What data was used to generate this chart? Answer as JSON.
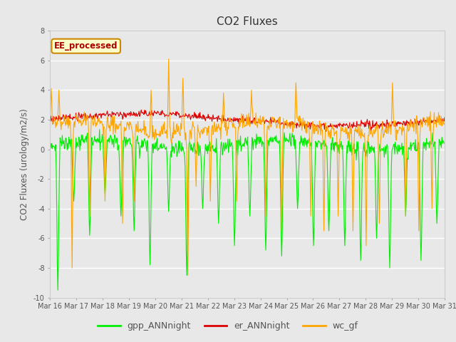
{
  "title": "CO2 Fluxes",
  "ylabel": "CO2 Fluxes (urology/m2/s)",
  "ylim": [
    -10,
    8
  ],
  "yticks": [
    -10,
    -8,
    -6,
    -4,
    -2,
    0,
    2,
    4,
    6,
    8
  ],
  "x_tick_labels": [
    "Mar 16",
    "Mar 17",
    "Mar 18",
    "Mar 19",
    "Mar 20",
    "Mar 21",
    "Mar 22",
    "Mar 23",
    "Mar 24",
    "Mar 25",
    "Mar 26",
    "Mar 27",
    "Mar 28",
    "Mar 29",
    "Mar 30",
    "Mar 31"
  ],
  "background_color": "#e8e8e8",
  "plot_bg_color": "#e8e8e8",
  "grid_color": "#ffffff",
  "gpp_color": "#00ee00",
  "er_color": "#dd0000",
  "wc_color": "#ffa500",
  "linewidth": 0.8,
  "legend_label": "EE_processed",
  "legend_box_facecolor": "#ffffcc",
  "legend_box_edgecolor": "#cc8800",
  "seed": 12345
}
